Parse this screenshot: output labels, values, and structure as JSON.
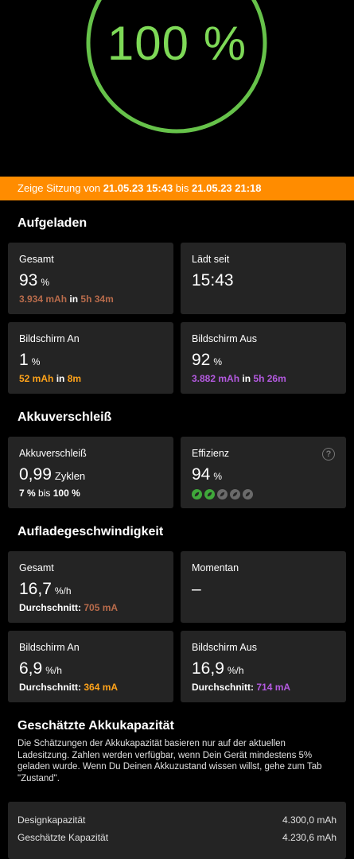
{
  "charge_level": {
    "value_text": "100 %",
    "percent": 100,
    "color": "#66c24a"
  },
  "session": {
    "prefix": "Zeige Sitzung von",
    "start": "21.05.23 15:43",
    "middle": "bis",
    "end": "21.05.23 21:18",
    "bar_color": "#ff8c00"
  },
  "sections": {
    "charged": "Aufgeladen",
    "wear": "Akkuverschleiß",
    "speed": "Aufladegeschwindigkeit",
    "capacity": "Geschätzte Akkukapazität"
  },
  "charged": {
    "total": {
      "label": "Gesamt",
      "value": "93",
      "unit": "%",
      "mah": "3.934 mAh",
      "in": "in",
      "duration": "5h 34m"
    },
    "since": {
      "label": "Lädt seit",
      "value": "15:43"
    },
    "screen_on": {
      "label": "Bildschirm An",
      "value": "1",
      "unit": "%",
      "mah": "52 mAh",
      "in": "in",
      "duration": "8m"
    },
    "screen_off": {
      "label": "Bildschirm Aus",
      "value": "92",
      "unit": "%",
      "mah": "3.882 mAh",
      "in": "in",
      "duration": "5h 26m"
    }
  },
  "wear": {
    "cycles": {
      "label": "Akkuverschleiß",
      "value": "0,99",
      "unit": "Zyklen",
      "from": "7 %",
      "to_word": "bis",
      "to": "100 %"
    },
    "efficiency": {
      "label": "Effizienz",
      "value": "94",
      "unit": "%",
      "help_icon": "help-circle-icon",
      "leaf_rating": 2,
      "leaf_total": 5
    }
  },
  "speed": {
    "total": {
      "label": "Gesamt",
      "value": "16,7",
      "unit": "%/h",
      "avg_label": "Durchschnitt:",
      "avg_value": "705 mA"
    },
    "current": {
      "label": "Momentan",
      "value": "–"
    },
    "screen_on": {
      "label": "Bildschirm An",
      "value": "6,9",
      "unit": "%/h",
      "avg_label": "Durchschnitt:",
      "avg_value": "364 mA"
    },
    "screen_off": {
      "label": "Bildschirm Aus",
      "value": "16,9",
      "unit": "%/h",
      "avg_label": "Durchschnitt:",
      "avg_value": "714 mA"
    }
  },
  "capacity": {
    "info": "Die Schätzungen der Akkukapazität basieren nur auf der aktuellen Ladesitzung. Zahlen werden verfügbar, wenn Dein Gerät mindestens 5% geladen wurde. Wenn Du Deinen Akkuzustand wissen willst, gehe zum Tab \"Zustand\".",
    "design_label": "Designkapazität",
    "design_value": "4.300,0 mAh",
    "estimated_label": "Geschätzte Kapazität",
    "estimated_value": "4.230,6 mAh"
  }
}
